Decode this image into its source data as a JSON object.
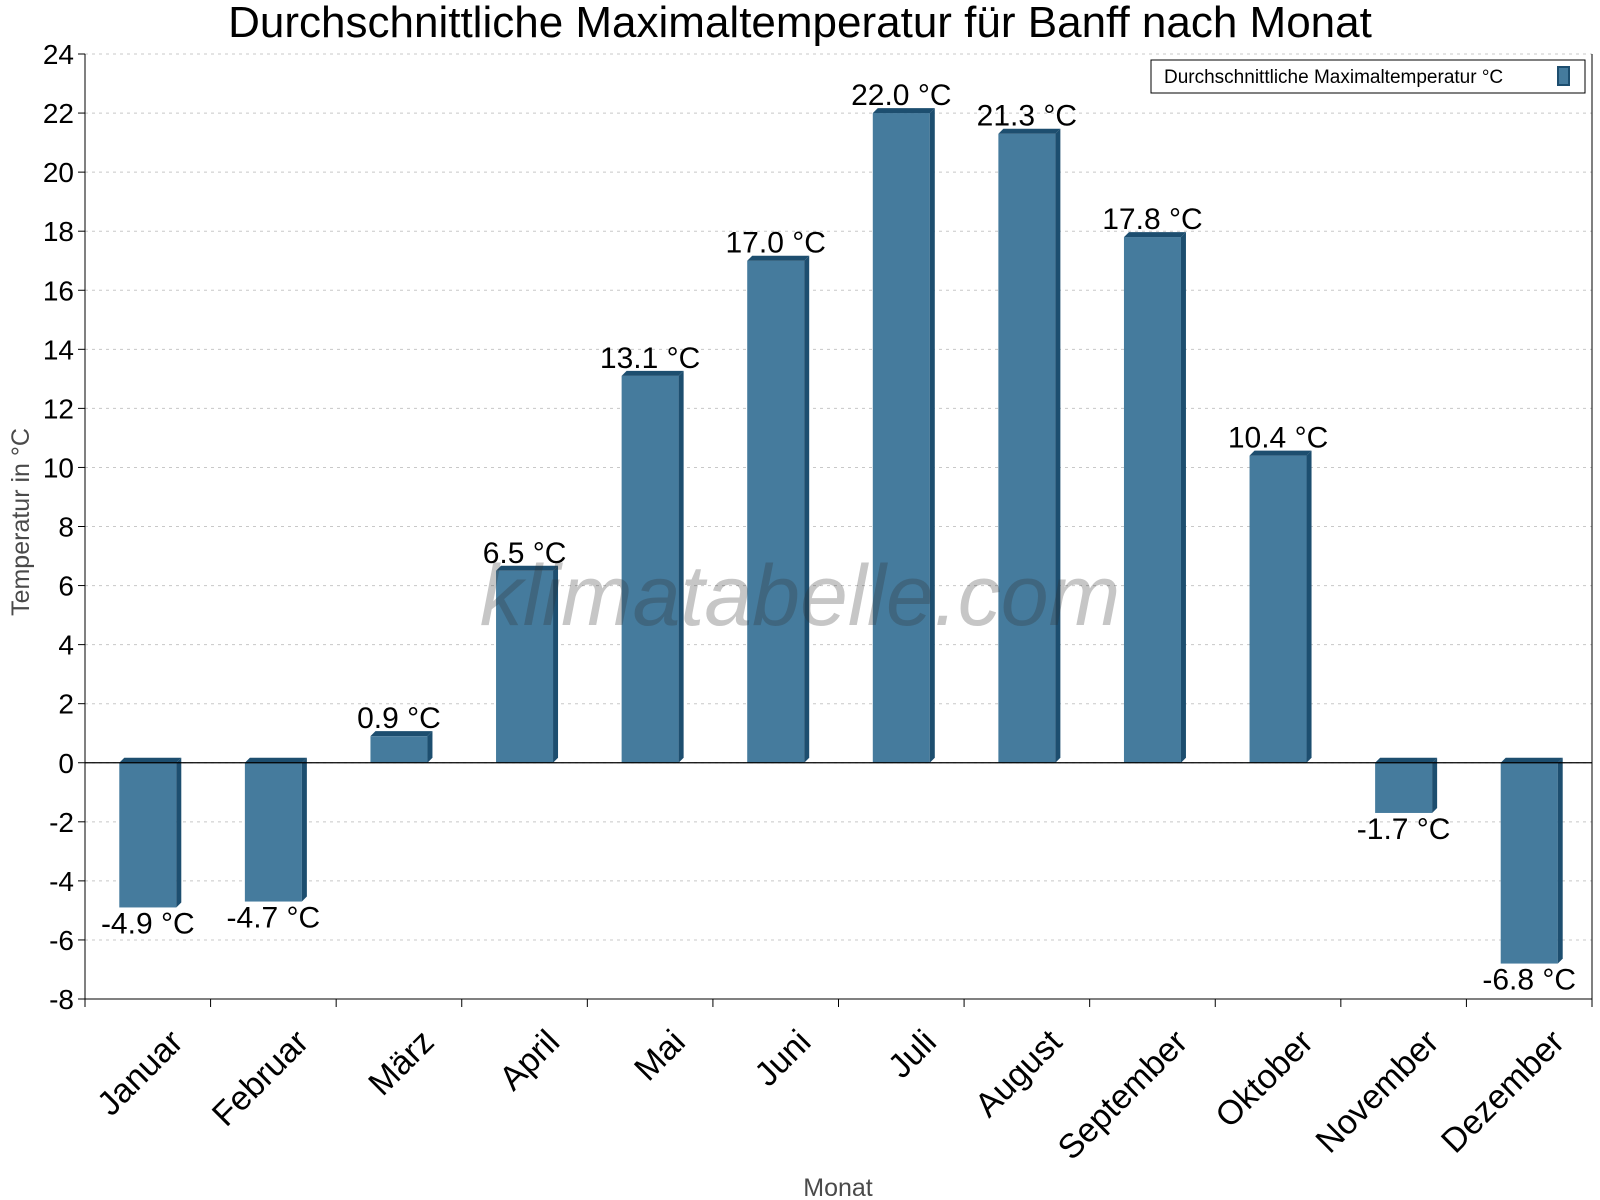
{
  "watermark": "klimatabelle.com",
  "colors": {
    "bar_front": "#457b9d",
    "bar_side": "#1d4e6f",
    "bar_top": "#1d4e6f",
    "grid": "#c8c8c8",
    "axis": "#000000"
  },
  "chart_data": {
    "type": "bar",
    "title": "Durchschnittliche Maximaltemperatur für Banff nach Monat",
    "xlabel": "Monat",
    "ylabel": "Temperatur in °C",
    "categories": [
      "Januar",
      "Februar",
      "März",
      "April",
      "Mai",
      "Juni",
      "Juli",
      "August",
      "September",
      "Oktober",
      "November",
      "Dezember"
    ],
    "series": [
      {
        "name": "Durchschnittliche Maximaltemperatur °C",
        "values": [
          -4.9,
          -4.7,
          0.9,
          6.5,
          13.1,
          17.0,
          22.0,
          21.3,
          17.8,
          10.4,
          -1.7,
          -6.8
        ],
        "labels": [
          "-4.9 °C",
          "-4.7 °C",
          "0.9 °C",
          "6.5 °C",
          "13.1 °C",
          "17.0 °C",
          "22.0 °C",
          "21.3 °C",
          "17.8 °C",
          "10.4 °C",
          "-1.7 °C",
          "-6.8 °C"
        ]
      }
    ],
    "ylim": [
      -8,
      24
    ],
    "yticks": [
      -8,
      -6,
      -4,
      -2,
      0,
      2,
      4,
      6,
      8,
      10,
      12,
      14,
      16,
      18,
      20,
      22,
      24
    ],
    "grid": true,
    "legend_position": "top-right"
  }
}
